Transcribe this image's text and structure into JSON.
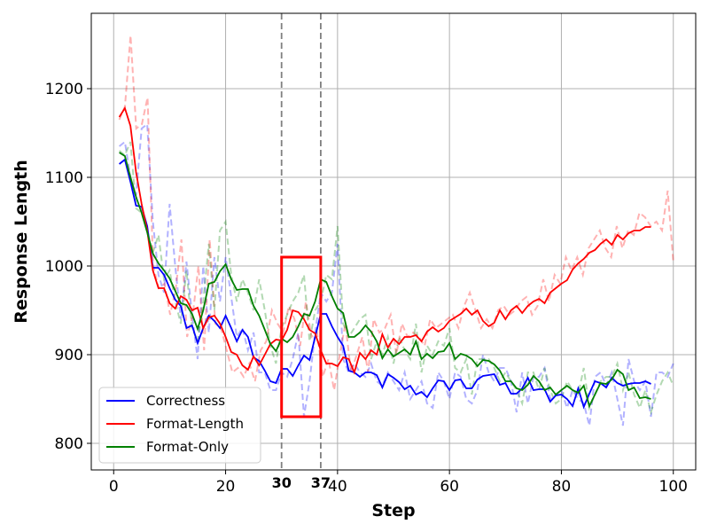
{
  "chart_data": {
    "type": "line",
    "xlabel": "Step",
    "ylabel": "Response Length",
    "xlim": [
      -4,
      104
    ],
    "ylim": [
      770,
      1285
    ],
    "xticks": [
      0,
      20,
      40,
      60,
      80,
      100
    ],
    "yticks": [
      800,
      900,
      1000,
      1100,
      1200
    ],
    "grid": true,
    "legend_position": "lower-left",
    "markers": [
      {
        "x": 30,
        "label": "30"
      },
      {
        "x": 37,
        "label": "37"
      }
    ],
    "highlight_box": {
      "x": [
        30,
        37
      ],
      "y": [
        830,
        1010
      ],
      "color": "#ff0000"
    },
    "series": [
      {
        "name": "Correctness",
        "color": "#0000ff",
        "x": [
          1,
          2,
          3,
          4,
          5,
          6,
          7,
          8,
          9,
          10,
          11,
          12,
          13,
          14,
          15,
          16,
          17,
          18,
          19,
          20,
          21,
          22,
          23,
          24,
          25,
          26,
          27,
          28,
          29,
          30,
          31,
          32,
          33,
          34,
          35,
          36,
          37,
          38,
          39,
          40,
          41,
          42,
          43,
          44,
          45,
          46,
          47,
          48,
          49,
          50,
          51,
          52,
          53,
          54,
          55,
          56,
          57,
          58,
          59,
          60,
          61,
          62,
          63,
          64,
          65,
          66,
          67,
          68,
          69,
          70,
          71,
          72,
          73,
          74,
          75,
          76,
          77,
          78,
          79,
          80,
          81,
          82,
          83,
          84,
          85,
          86,
          87,
          88,
          89,
          90,
          91,
          92,
          93,
          94,
          95,
          96
        ],
        "values": [
          1115,
          1120,
          1095,
          1068,
          1067,
          1045,
          998,
          998,
          990,
          975,
          962,
          955,
          930,
          933,
          913,
          930,
          944,
          938,
          930,
          944,
          930,
          915,
          928,
          920,
          897,
          893,
          882,
          870,
          868,
          884,
          884,
          876,
          888,
          899,
          894,
          920,
          946,
          946,
          932,
          920,
          910,
          882,
          880,
          875,
          880,
          880,
          877,
          863,
          878,
          874,
          869,
          861,
          865,
          855,
          858,
          852,
          862,
          871,
          870,
          860,
          871,
          872,
          862,
          862,
          872,
          876,
          877,
          878,
          866,
          868,
          856,
          856,
          862,
          874,
          860,
          861,
          861,
          847,
          854,
          855,
          850,
          842,
          862,
          841,
          856,
          870,
          868,
          863,
          874,
          868,
          865,
          867,
          868,
          868,
          870,
          867
        ],
        "raw_values": [
          1135,
          1140,
          1100,
          1080,
          1155,
          1160,
          1050,
          990,
          970,
          1070,
          1000,
          940,
          1005,
          945,
          895,
          1000,
          925,
          1010,
          960,
          1010,
          965,
          920,
          930,
          905,
          925,
          880,
          880,
          860,
          860,
          880,
          875,
          895,
          925,
          830,
          870,
          925,
          970,
          960,
          970,
          1025,
          895,
          880,
          890,
          880,
          875,
          890,
          870,
          865,
          880,
          870,
          860,
          880,
          850,
          860,
          870,
          845,
          840,
          880,
          870,
          850,
          880,
          875,
          850,
          845,
          860,
          900,
          880,
          870,
          885,
          885,
          870,
          835,
          880,
          845,
          875,
          875,
          885,
          850,
          855,
          860,
          840,
          860,
          850,
          845,
          820,
          875,
          880,
          865,
          880,
          850,
          820,
          895,
          870,
          860,
          870,
          830,
          880,
          880,
          875,
          890
        ]
      },
      {
        "name": "Format-Length",
        "color": "#ff0000",
        "x": [
          1,
          2,
          3,
          4,
          5,
          6,
          7,
          8,
          9,
          10,
          11,
          12,
          13,
          14,
          15,
          16,
          17,
          18,
          19,
          20,
          21,
          22,
          23,
          24,
          25,
          26,
          27,
          28,
          29,
          30,
          31,
          32,
          33,
          34,
          35,
          36,
          37,
          38,
          39,
          40,
          41,
          42,
          43,
          44,
          45,
          46,
          47,
          48,
          49,
          50,
          51,
          52,
          53,
          54,
          55,
          56,
          57,
          58,
          59,
          60,
          61,
          62,
          63,
          64,
          65,
          66,
          67,
          68,
          69,
          70,
          71,
          72,
          73,
          74,
          75,
          76,
          77,
          78,
          79,
          80,
          81,
          82,
          83,
          84,
          85,
          86,
          87,
          88,
          89,
          90,
          91,
          92,
          93,
          94,
          95,
          96
        ],
        "values": [
          1168,
          1178,
          1158,
          1106,
          1070,
          1040,
          995,
          975,
          975,
          958,
          952,
          966,
          962,
          950,
          953,
          930,
          942,
          944,
          935,
          920,
          903,
          900,
          888,
          883,
          898,
          888,
          900,
          912,
          917,
          916,
          928,
          950,
          948,
          940,
          928,
          924,
          905,
          890,
          890,
          887,
          897,
          895,
          880,
          902,
          895,
          905,
          900,
          923,
          908,
          918,
          912,
          920,
          920,
          922,
          915,
          926,
          931,
          926,
          930,
          938,
          942,
          946,
          952,
          945,
          950,
          938,
          932,
          936,
          950,
          940,
          950,
          955,
          947,
          955,
          960,
          963,
          958,
          970,
          975,
          980,
          984,
          996,
          1003,
          1008,
          1015,
          1018,
          1025,
          1030,
          1024,
          1035,
          1030,
          1037,
          1040,
          1040,
          1044,
          1044
        ],
        "raw_values": [
          1165,
          1180,
          1260,
          1155,
          1160,
          1190,
          1000,
          975,
          980,
          945,
          975,
          1030,
          920,
          945,
          1000,
          905,
          1030,
          935,
          930,
          905,
          880,
          885,
          875,
          890,
          870,
          905,
          915,
          950,
          935,
          925,
          955,
          940,
          910,
          960,
          920,
          925,
          875,
          895,
          860,
          900,
          935,
          880,
          900,
          920,
          880,
          940,
          925,
          930,
          945,
          900,
          935,
          920,
          925,
          920,
          910,
          940,
          930,
          935,
          940,
          945,
          930,
          955,
          970,
          950,
          930,
          940,
          930,
          950,
          955,
          945,
          950,
          960,
          965,
          945,
          955,
          985,
          960,
          990,
          980,
          1010,
          995,
          1010,
          990,
          1020,
          1030,
          1040,
          1020,
          1010,
          1045,
          1020,
          1040,
          1035,
          1060,
          1055,
          1045,
          1050,
          1040,
          1085,
          1005
        ]
      },
      {
        "name": "Format-Only",
        "color": "#008000",
        "x": [
          1,
          2,
          3,
          4,
          5,
          6,
          7,
          8,
          9,
          10,
          11,
          12,
          13,
          14,
          15,
          16,
          17,
          18,
          19,
          20,
          21,
          22,
          23,
          24,
          25,
          26,
          27,
          28,
          29,
          30,
          31,
          32,
          33,
          34,
          35,
          36,
          37,
          38,
          39,
          40,
          41,
          42,
          43,
          44,
          45,
          46,
          47,
          48,
          49,
          50,
          51,
          52,
          53,
          54,
          55,
          56,
          57,
          58,
          59,
          60,
          61,
          62,
          63,
          64,
          65,
          66,
          67,
          68,
          69,
          70,
          71,
          72,
          73,
          74,
          75,
          76,
          77,
          78,
          79,
          80,
          81,
          82,
          83,
          84,
          85,
          86,
          87,
          88,
          89,
          90,
          91,
          92,
          93,
          94,
          95,
          96
        ],
        "values": [
          1128,
          1124,
          1100,
          1078,
          1060,
          1038,
          1014,
          1003,
          995,
          986,
          972,
          958,
          956,
          946,
          929,
          950,
          980,
          982,
          994,
          1002,
          985,
          973,
          974,
          974,
          955,
          944,
          928,
          912,
          904,
          918,
          914,
          920,
          932,
          946,
          944,
          960,
          985,
          982,
          966,
          952,
          947,
          920,
          920,
          925,
          933,
          926,
          915,
          896,
          906,
          898,
          902,
          906,
          900,
          915,
          895,
          901,
          896,
          903,
          904,
          913,
          895,
          901,
          899,
          895,
          887,
          894,
          893,
          889,
          882,
          870,
          870,
          862,
          860,
          866,
          876,
          870,
          860,
          863,
          855,
          860,
          865,
          860,
          857,
          865,
          842,
          855,
          868,
          867,
          872,
          883,
          878,
          860,
          863,
          851,
          852,
          850
        ],
        "raw_values": [
          1130,
          1125,
          1140,
          1065,
          1060,
          1040,
          1015,
          1035,
          985,
          995,
          960,
          935,
          995,
          930,
          915,
          960,
          1025,
          950,
          1040,
          1050,
          990,
          960,
          985,
          970,
          950,
          985,
          950,
          910,
          890,
          930,
          945,
          960,
          970,
          990,
          915,
          950,
          960,
          990,
          985,
          1045,
          935,
          920,
          930,
          940,
          945,
          895,
          915,
          900,
          920,
          890,
          920,
          905,
          895,
          935,
          880,
          910,
          900,
          915,
          910,
          930,
          885,
          880,
          895,
          855,
          895,
          895,
          895,
          885,
          870,
          880,
          870,
          860,
          845,
          880,
          880,
          860,
          885,
          860,
          845,
          850,
          870,
          860,
          855,
          885,
          840,
          855,
          870,
          875,
          875,
          890,
          860,
          880,
          855,
          840,
          860,
          835,
          855,
          870,
          880,
          865
        ]
      }
    ]
  }
}
